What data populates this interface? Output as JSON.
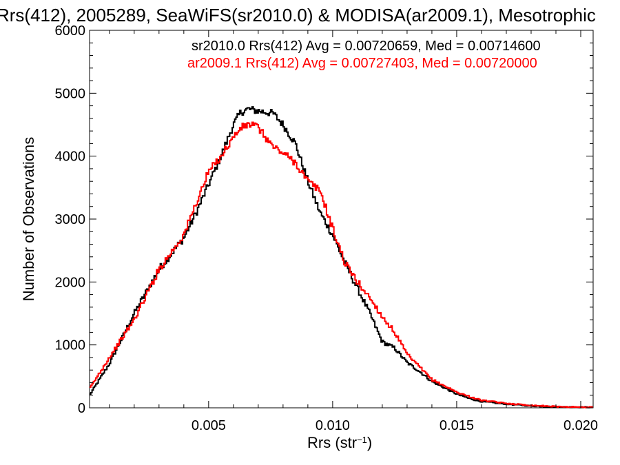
{
  "chart_data": {
    "type": "line",
    "step": true,
    "title": "Rrs(412), 2005289, SeaWiFS(sr2010.0) & MODISA(ar2009.1), Mesotrophic",
    "xlabel_main": "Rrs (str",
    "xlabel_sup": "−1",
    "xlabel_close": ")",
    "ylabel": "Number of Observations",
    "xlim": [
      0.0002,
      0.0205
    ],
    "ylim": [
      0,
      6000
    ],
    "x_ticks": [
      0.005,
      0.01,
      0.015,
      0.02
    ],
    "x_tick_labels": [
      "0.005",
      "0.010",
      "0.015",
      "0.020"
    ],
    "y_ticks": [
      0,
      1000,
      2000,
      3000,
      4000,
      5000,
      6000
    ],
    "y_tick_labels": [
      "0",
      "1000",
      "2000",
      "3000",
      "4000",
      "5000",
      "6000"
    ],
    "grid": false,
    "legend_position": "top",
    "series": [
      {
        "name": "sr2010.0",
        "color": "#000000",
        "legend_text": "sr2010.0 Rrs(412) Avg = 0.00720659, Med = 0.00714600",
        "x": [
          0.0002,
          0.001,
          0.002,
          0.003,
          0.004,
          0.0045,
          0.005,
          0.0055,
          0.006,
          0.0063,
          0.0066,
          0.0068,
          0.007,
          0.0073,
          0.0076,
          0.008,
          0.0085,
          0.009,
          0.0095,
          0.01,
          0.0105,
          0.011,
          0.0115,
          0.012,
          0.0125,
          0.013,
          0.0135,
          0.014,
          0.0145,
          0.015,
          0.0155,
          0.016,
          0.017,
          0.018,
          0.019,
          0.02,
          0.0205
        ],
        "values": [
          200,
          700,
          1500,
          2200,
          2700,
          3100,
          3550,
          4000,
          4500,
          4700,
          4750,
          4730,
          4720,
          4700,
          4680,
          4500,
          4200,
          3600,
          3100,
          2750,
          2300,
          1900,
          1500,
          1050,
          950,
          720,
          580,
          420,
          320,
          220,
          150,
          100,
          60,
          30,
          15,
          10,
          10
        ]
      },
      {
        "name": "ar2009.1",
        "color": "#ff0000",
        "legend_text": "ar2009.1 Rrs(412) Avg = 0.00727403, Med = 0.00720000",
        "x": [
          0.0002,
          0.001,
          0.002,
          0.003,
          0.004,
          0.0045,
          0.005,
          0.0055,
          0.006,
          0.0063,
          0.0066,
          0.0068,
          0.007,
          0.0073,
          0.0076,
          0.008,
          0.0085,
          0.009,
          0.0095,
          0.01,
          0.0105,
          0.011,
          0.0115,
          0.012,
          0.0125,
          0.013,
          0.0135,
          0.014,
          0.0145,
          0.015,
          0.0155,
          0.016,
          0.017,
          0.018,
          0.019,
          0.02,
          0.0205
        ],
        "values": [
          300,
          800,
          1400,
          2200,
          2750,
          3250,
          3750,
          4000,
          4300,
          4450,
          4500,
          4500,
          4450,
          4300,
          4150,
          4050,
          3900,
          3600,
          3450,
          2850,
          2300,
          2000,
          1750,
          1450,
          1200,
          850,
          650,
          450,
          350,
          250,
          180,
          120,
          70,
          40,
          20,
          10,
          10
        ]
      }
    ]
  }
}
